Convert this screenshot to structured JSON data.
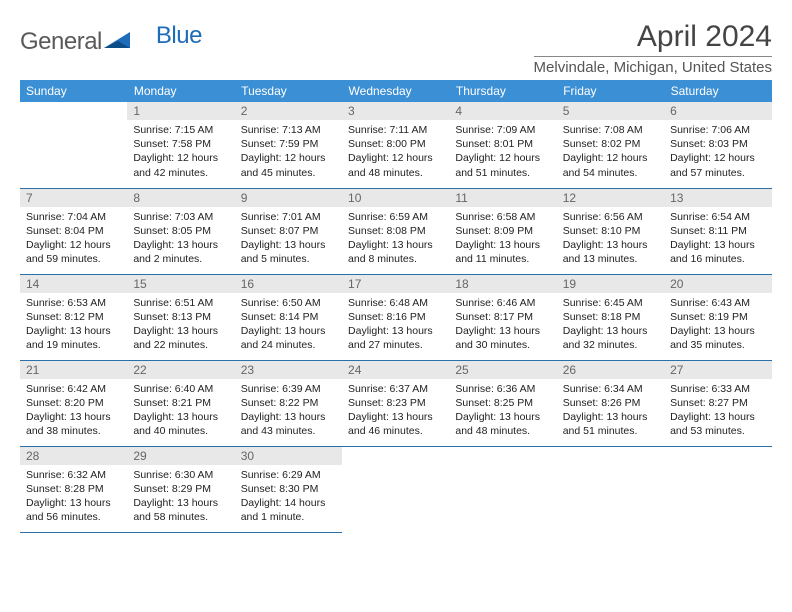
{
  "logo": {
    "text_gray": "General",
    "text_blue": "Blue"
  },
  "header": {
    "month": "April 2024",
    "location": "Melvindale, Michigan, United States"
  },
  "colors": {
    "header_bg": "#3b8fd4",
    "header_text": "#ffffff",
    "daynum_bg": "#e8e8e8",
    "daynum_text": "#666666",
    "row_border": "#2a6fa8",
    "logo_accent": "#1e6bb8",
    "logo_gray": "#5a5a5a"
  },
  "weekdays": [
    "Sunday",
    "Monday",
    "Tuesday",
    "Wednesday",
    "Thursday",
    "Friday",
    "Saturday"
  ],
  "weeks": [
    [
      null,
      {
        "n": "1",
        "sr": "7:15 AM",
        "ss": "7:58 PM",
        "dl1": "12 hours",
        "dl2": "and 42 minutes."
      },
      {
        "n": "2",
        "sr": "7:13 AM",
        "ss": "7:59 PM",
        "dl1": "12 hours",
        "dl2": "and 45 minutes."
      },
      {
        "n": "3",
        "sr": "7:11 AM",
        "ss": "8:00 PM",
        "dl1": "12 hours",
        "dl2": "and 48 minutes."
      },
      {
        "n": "4",
        "sr": "7:09 AM",
        "ss": "8:01 PM",
        "dl1": "12 hours",
        "dl2": "and 51 minutes."
      },
      {
        "n": "5",
        "sr": "7:08 AM",
        "ss": "8:02 PM",
        "dl1": "12 hours",
        "dl2": "and 54 minutes."
      },
      {
        "n": "6",
        "sr": "7:06 AM",
        "ss": "8:03 PM",
        "dl1": "12 hours",
        "dl2": "and 57 minutes."
      }
    ],
    [
      {
        "n": "7",
        "sr": "7:04 AM",
        "ss": "8:04 PM",
        "dl1": "12 hours",
        "dl2": "and 59 minutes."
      },
      {
        "n": "8",
        "sr": "7:03 AM",
        "ss": "8:05 PM",
        "dl1": "13 hours",
        "dl2": "and 2 minutes."
      },
      {
        "n": "9",
        "sr": "7:01 AM",
        "ss": "8:07 PM",
        "dl1": "13 hours",
        "dl2": "and 5 minutes."
      },
      {
        "n": "10",
        "sr": "6:59 AM",
        "ss": "8:08 PM",
        "dl1": "13 hours",
        "dl2": "and 8 minutes."
      },
      {
        "n": "11",
        "sr": "6:58 AM",
        "ss": "8:09 PM",
        "dl1": "13 hours",
        "dl2": "and 11 minutes."
      },
      {
        "n": "12",
        "sr": "6:56 AM",
        "ss": "8:10 PM",
        "dl1": "13 hours",
        "dl2": "and 13 minutes."
      },
      {
        "n": "13",
        "sr": "6:54 AM",
        "ss": "8:11 PM",
        "dl1": "13 hours",
        "dl2": "and 16 minutes."
      }
    ],
    [
      {
        "n": "14",
        "sr": "6:53 AM",
        "ss": "8:12 PM",
        "dl1": "13 hours",
        "dl2": "and 19 minutes."
      },
      {
        "n": "15",
        "sr": "6:51 AM",
        "ss": "8:13 PM",
        "dl1": "13 hours",
        "dl2": "and 22 minutes."
      },
      {
        "n": "16",
        "sr": "6:50 AM",
        "ss": "8:14 PM",
        "dl1": "13 hours",
        "dl2": "and 24 minutes."
      },
      {
        "n": "17",
        "sr": "6:48 AM",
        "ss": "8:16 PM",
        "dl1": "13 hours",
        "dl2": "and 27 minutes."
      },
      {
        "n": "18",
        "sr": "6:46 AM",
        "ss": "8:17 PM",
        "dl1": "13 hours",
        "dl2": "and 30 minutes."
      },
      {
        "n": "19",
        "sr": "6:45 AM",
        "ss": "8:18 PM",
        "dl1": "13 hours",
        "dl2": "and 32 minutes."
      },
      {
        "n": "20",
        "sr": "6:43 AM",
        "ss": "8:19 PM",
        "dl1": "13 hours",
        "dl2": "and 35 minutes."
      }
    ],
    [
      {
        "n": "21",
        "sr": "6:42 AM",
        "ss": "8:20 PM",
        "dl1": "13 hours",
        "dl2": "and 38 minutes."
      },
      {
        "n": "22",
        "sr": "6:40 AM",
        "ss": "8:21 PM",
        "dl1": "13 hours",
        "dl2": "and 40 minutes."
      },
      {
        "n": "23",
        "sr": "6:39 AM",
        "ss": "8:22 PM",
        "dl1": "13 hours",
        "dl2": "and 43 minutes."
      },
      {
        "n": "24",
        "sr": "6:37 AM",
        "ss": "8:23 PM",
        "dl1": "13 hours",
        "dl2": "and 46 minutes."
      },
      {
        "n": "25",
        "sr": "6:36 AM",
        "ss": "8:25 PM",
        "dl1": "13 hours",
        "dl2": "and 48 minutes."
      },
      {
        "n": "26",
        "sr": "6:34 AM",
        "ss": "8:26 PM",
        "dl1": "13 hours",
        "dl2": "and 51 minutes."
      },
      {
        "n": "27",
        "sr": "6:33 AM",
        "ss": "8:27 PM",
        "dl1": "13 hours",
        "dl2": "and 53 minutes."
      }
    ],
    [
      {
        "n": "28",
        "sr": "6:32 AM",
        "ss": "8:28 PM",
        "dl1": "13 hours",
        "dl2": "and 56 minutes."
      },
      {
        "n": "29",
        "sr": "6:30 AM",
        "ss": "8:29 PM",
        "dl1": "13 hours",
        "dl2": "and 58 minutes."
      },
      {
        "n": "30",
        "sr": "6:29 AM",
        "ss": "8:30 PM",
        "dl1": "14 hours",
        "dl2": "and 1 minute."
      },
      null,
      null,
      null,
      null
    ]
  ],
  "labels": {
    "sunrise": "Sunrise:",
    "sunset": "Sunset:",
    "daylight": "Daylight:"
  }
}
